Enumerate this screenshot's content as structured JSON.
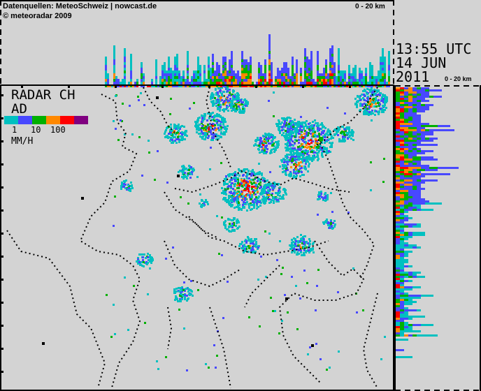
{
  "header": {
    "source": "Datenquellen: MeteoSchweiz | nowcast.de",
    "copyright": "© meteoradar 2009",
    "top_scale": "0 - 20 km",
    "side_scale": "0 - 20 km"
  },
  "timestamp": {
    "time": "13:55 UTC",
    "date": "14 JUN",
    "year": "2011"
  },
  "legend": {
    "title_line1": "RADAR CH",
    "title_line2": "AD",
    "tick_1": "1",
    "tick_10": "10",
    "tick_100": "100",
    "unit": "MM/H",
    "colors": [
      "#00c0c0",
      "#4848ff",
      "#00b000",
      "#ff8800",
      "#ff0000",
      "#800080"
    ]
  },
  "colors": {
    "background": "#d3d3d3",
    "border": "#000000"
  }
}
